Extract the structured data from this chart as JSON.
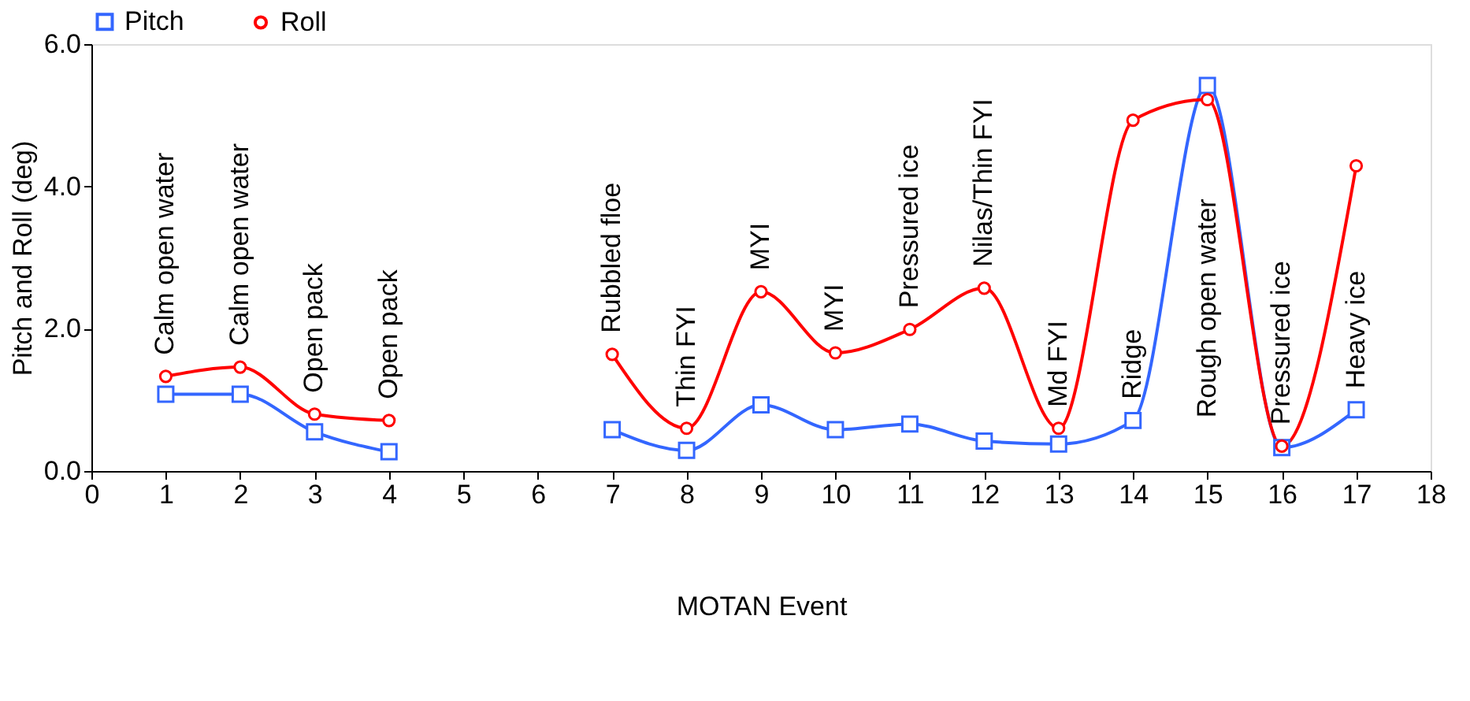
{
  "chart_data": {
    "type": "line",
    "xlabel": "MOTAN Event",
    "ylabel": "Pitch and Roll (deg)",
    "x": [
      1,
      2,
      3,
      4,
      5,
      6,
      7,
      8,
      9,
      10,
      11,
      12,
      13,
      14,
      15,
      16,
      17
    ],
    "series": [
      {
        "name": "Pitch",
        "color": "#3366ff",
        "marker": "square",
        "values": [
          1.08,
          1.08,
          0.55,
          0.27,
          null,
          null,
          0.58,
          0.29,
          0.93,
          0.58,
          0.66,
          0.42,
          0.38,
          0.71,
          5.42,
          0.33,
          0.86
        ]
      },
      {
        "name": "Roll",
        "color": "#ff0000",
        "marker": "circle",
        "values": [
          1.33,
          1.46,
          0.8,
          0.71,
          null,
          null,
          1.64,
          0.6,
          2.52,
          1.66,
          1.99,
          2.57,
          0.6,
          4.93,
          5.22,
          0.35,
          4.29
        ]
      }
    ],
    "xlim": [
      0,
      18
    ],
    "xticks": [
      0,
      1,
      2,
      3,
      4,
      5,
      6,
      7,
      8,
      9,
      10,
      11,
      12,
      13,
      14,
      15,
      16,
      17,
      18
    ],
    "ylim": [
      0,
      6
    ],
    "yticks": [
      {
        "value": 0,
        "label": "0.0"
      },
      {
        "value": 2,
        "label": "2.0"
      },
      {
        "value": 4,
        "label": "4.0"
      },
      {
        "value": 6,
        "label": "6.0"
      }
    ],
    "grid": false,
    "legend": "top",
    "line_style": "solid",
    "annotations": [
      "Calm open water",
      "Calm open water",
      "Open pack",
      "Open pack",
      "Rubbled floe",
      "Thin FYI",
      "MYI",
      "MYI",
      "Pressured ice",
      "Nilas/Thin FYI",
      "Md FYI",
      "Ridge",
      "Rough open water",
      "Pressured ice",
      "Heavy ice"
    ]
  }
}
